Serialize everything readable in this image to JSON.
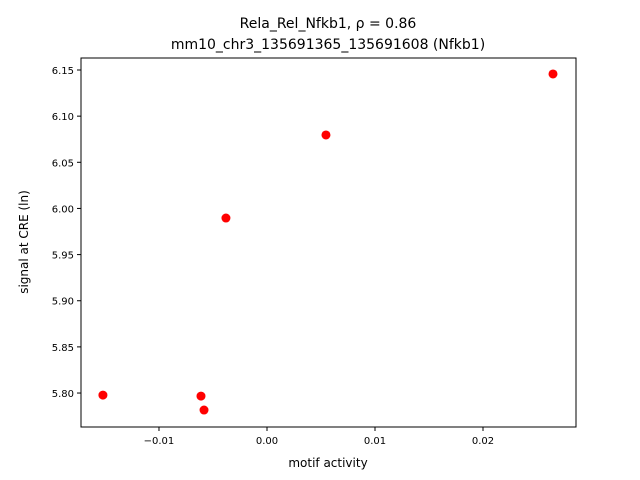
{
  "chart_data": {
    "type": "scatter",
    "title": "Rela_Rel_Nfkb1, ρ = 0.86",
    "subtitle": "mm10_chr3_135691365_135691608 (Nfkb1)",
    "x_label": "motif activity",
    "y_label": "signal at CRE (ln)",
    "color": "#ff0000",
    "x": [
      -0.01519,
      -0.00611,
      -0.00583,
      -0.0038,
      0.00546,
      0.02648
    ],
    "values": [
      5.7978,
      5.7967,
      5.7816,
      5.9896,
      6.0796,
      6.1457
    ],
    "xlim": [
      -0.01722,
      0.02861
    ],
    "ylim": [
      5.7632,
      6.163
    ],
    "xticks": [
      {
        "value": -0.01,
        "label": "−0.01"
      },
      {
        "value": 0,
        "label": "0.00"
      },
      0.01,
      0.02
    ],
    "yticks": [
      {
        "value": 5.8,
        "label": "5.80"
      },
      5.85,
      {
        "value": 5.9,
        "label": "5.90"
      },
      5.95,
      {
        "value": 6,
        "label": "6.00"
      },
      6.05,
      {
        "value": 6.1,
        "label": "6.10"
      },
      6.15
    ]
  }
}
